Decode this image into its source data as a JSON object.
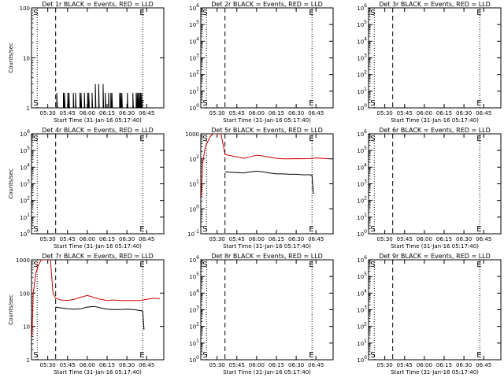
{
  "chart_data": [
    {
      "type": "line",
      "title": "Det 1r BLACK = Events, RED = LLD",
      "xlabel": "Start Time (31-Jan-16 05:17:40)",
      "ylabel": "Counts/sec",
      "xticks": [
        "05:30",
        "05:45",
        "06:00",
        "06:15",
        "06:30",
        "06:45"
      ],
      "yscale": "log",
      "ylim": [
        1,
        100
      ],
      "yticks": [
        {
          "value": 1,
          "label": "1"
        },
        {
          "value": 10,
          "label": "10"
        },
        {
          "value": 100,
          "label": "100"
        }
      ],
      "markers": {
        "S": "05:22",
        "E": "06:42"
      },
      "dotted_lines": [
        "05:22",
        "06:42"
      ],
      "dashed_line": "05:36",
      "series": [
        {
          "color": "#000000",
          "style": "spiky",
          "x": [
            "05:36",
            "06:42"
          ],
          "base": 1,
          "peak": 2,
          "peak2": 3
        }
      ]
    },
    {
      "type": "line",
      "title": "Det 2r BLACK = Events, RED = LLD",
      "xlabel": "Start Time (31-Jan-16 05:17:40)",
      "ylabel": "",
      "xticks": [
        "05:30",
        "05:45",
        "06:00",
        "06:15",
        "06:30",
        "06:45"
      ],
      "yscale": "log",
      "ylim": [
        1,
        1000000
      ],
      "yticks": [
        {
          "value": 1,
          "label": "10^0"
        },
        {
          "value": 10,
          "label": "10^1"
        },
        {
          "value": 100,
          "label": "10^2"
        },
        {
          "value": 1000,
          "label": "10^3"
        },
        {
          "value": 10000,
          "label": "10^4"
        },
        {
          "value": 100000,
          "label": "10^5"
        },
        {
          "value": 1000000,
          "label": "10^6"
        }
      ],
      "markers": {
        "S": "05:22",
        "E": "06:42"
      },
      "dotted_lines": [
        "05:22",
        "06:42"
      ],
      "dashed_line": "05:36",
      "series": []
    },
    {
      "type": "line",
      "title": "Det 3r BLACK = Events, RED = LLD",
      "xlabel": "Start Time (31-Jan-16 05:17:40)",
      "ylabel": "",
      "xticks": [
        "05:30",
        "05:45",
        "06:00",
        "06:15",
        "06:30",
        "06:45"
      ],
      "yscale": "log",
      "ylim": [
        1,
        1000000
      ],
      "yticks": [
        {
          "value": 1,
          "label": "10^0"
        },
        {
          "value": 10,
          "label": "10^1"
        },
        {
          "value": 100,
          "label": "10^2"
        },
        {
          "value": 1000,
          "label": "10^3"
        },
        {
          "value": 10000,
          "label": "10^4"
        },
        {
          "value": 100000,
          "label": "10^5"
        },
        {
          "value": 1000000,
          "label": "10^6"
        }
      ],
      "markers": {
        "S": "05:22",
        "E": "06:42"
      },
      "dotted_lines": [
        "05:22",
        "06:42"
      ],
      "dashed_line": "05:36",
      "series": []
    },
    {
      "type": "line",
      "title": "Det 4r BLACK = Events, RED = LLD",
      "xlabel": "Start Time (31-Jan-16 05:17:40)",
      "ylabel": "Counts/sec",
      "xticks": [
        "05:30",
        "05:45",
        "06:00",
        "06:15",
        "06:30",
        "06:45"
      ],
      "yscale": "log",
      "ylim": [
        1,
        1000000
      ],
      "yticks": [
        {
          "value": 1,
          "label": "10^0"
        },
        {
          "value": 10,
          "label": "10^1"
        },
        {
          "value": 100,
          "label": "10^2"
        },
        {
          "value": 1000,
          "label": "10^3"
        },
        {
          "value": 10000,
          "label": "10^4"
        },
        {
          "value": 100000,
          "label": "10^5"
        },
        {
          "value": 1000000,
          "label": "10^6"
        }
      ],
      "markers": {
        "S": "05:22",
        "E": "06:42"
      },
      "dotted_lines": [
        "05:22",
        "06:42"
      ],
      "dashed_line": "05:36",
      "series": []
    },
    {
      "type": "line",
      "title": "Det 5r BLACK = Events, RED = LLD",
      "xlabel": "Start Time (31-Jan-16 05:17:40)",
      "ylabel": "",
      "xticks": [
        "05:30",
        "05:45",
        "06:00",
        "06:15",
        "06:30",
        "06:45"
      ],
      "yscale": "log",
      "ylim": [
        0.1,
        1000
      ],
      "yticks": [
        {
          "value": 0.1,
          "label": "10^-1"
        },
        {
          "value": 1,
          "label": "10^0"
        },
        {
          "value": 10,
          "label": "10^1"
        },
        {
          "value": 100,
          "label": "10^2"
        },
        {
          "value": 1000,
          "label": "1000"
        }
      ],
      "markers": {
        "S": "05:22",
        "E": "06:42"
      },
      "dotted_lines": [
        "05:22",
        "06:42"
      ],
      "dashed_line": "05:36",
      "series": [
        {
          "color": "#cc0000",
          "x": [
            "05:18",
            "05:19",
            "05:21",
            "05:23",
            "05:25",
            "05:27",
            "05:30",
            "05:33",
            "05:36",
            "05:45",
            "05:50",
            "05:55",
            "06:00",
            "06:05",
            "06:10",
            "06:15",
            "06:20",
            "06:25",
            "06:30",
            "06:35",
            "06:40",
            "06:45",
            "06:50",
            "06:55"
          ],
          "y": [
            3,
            60,
            300,
            500,
            800,
            1000,
            1000,
            1000,
            150,
            120,
            105,
            120,
            140,
            130,
            115,
            105,
            100,
            100,
            102,
            101,
            102,
            108,
            105,
            100
          ]
        },
        {
          "color": "#000000",
          "x": [
            "05:36",
            "05:45",
            "05:50",
            "05:55",
            "06:00",
            "06:05",
            "06:10",
            "06:15",
            "06:20",
            "06:25",
            "06:30",
            "06:35",
            "06:40",
            "06:42",
            "06:43"
          ],
          "y": [
            30,
            28,
            27,
            30,
            32,
            30,
            27,
            25,
            25,
            24,
            24,
            23,
            23,
            22,
            4
          ]
        }
      ]
    },
    {
      "type": "line",
      "title": "Det 6r BLACK = Events, RED = LLD",
      "xlabel": "Start Time (31-Jan-16 05:17:40)",
      "ylabel": "",
      "xticks": [
        "05:30",
        "05:45",
        "06:00",
        "06:15",
        "06:30",
        "06:45"
      ],
      "yscale": "log",
      "ylim": [
        1,
        1000000
      ],
      "yticks": [
        {
          "value": 1,
          "label": "10^0"
        },
        {
          "value": 10,
          "label": "10^1"
        },
        {
          "value": 100,
          "label": "10^2"
        },
        {
          "value": 1000,
          "label": "10^3"
        },
        {
          "value": 10000,
          "label": "10^4"
        },
        {
          "value": 100000,
          "label": "10^5"
        },
        {
          "value": 1000000,
          "label": "10^6"
        }
      ],
      "markers": {
        "S": "05:22",
        "E": "06:42"
      },
      "dotted_lines": [
        "05:22",
        "06:42"
      ],
      "dashed_line": "05:36",
      "series": []
    },
    {
      "type": "line",
      "title": "Det 7r BLACK = Events, RED = LLD",
      "xlabel": "Start Time (31-Jan-16 05:17:40)",
      "ylabel": "Counts/sec",
      "xticks": [
        "05:30",
        "05:45",
        "06:00",
        "06:15",
        "06:30",
        "06:45"
      ],
      "yscale": "log",
      "ylim": [
        1,
        1000
      ],
      "yticks": [
        {
          "value": 1,
          "label": "1"
        },
        {
          "value": 10,
          "label": "10"
        },
        {
          "value": 100,
          "label": "100"
        },
        {
          "value": 1000,
          "label": "1000"
        }
      ],
      "markers": {
        "S": "05:22",
        "E": "06:42"
      },
      "dotted_lines": [
        "05:22",
        "06:42"
      ],
      "dashed_line": "05:36",
      "series": [
        {
          "color": "#cc0000",
          "x": [
            "05:18",
            "05:19",
            "05:21",
            "05:23",
            "05:25",
            "05:27",
            "05:30",
            "05:32",
            "05:34",
            "05:36",
            "05:40",
            "05:45",
            "05:50",
            "05:55",
            "06:00",
            "06:05",
            "06:10",
            "06:15",
            "06:20",
            "06:25",
            "06:30",
            "06:35",
            "06:40",
            "06:45",
            "06:50",
            "06:55"
          ],
          "y": [
            5,
            100,
            400,
            700,
            1000,
            1000,
            1000,
            1000,
            100,
            70,
            62,
            60,
            65,
            75,
            85,
            74,
            65,
            60,
            62,
            60,
            60,
            60,
            60,
            65,
            70,
            68
          ]
        },
        {
          "color": "#000000",
          "x": [
            "05:36",
            "05:40",
            "05:45",
            "05:50",
            "05:55",
            "06:00",
            "06:05",
            "06:10",
            "06:15",
            "06:20",
            "06:25",
            "06:30",
            "06:35",
            "06:40",
            "06:42",
            "06:43"
          ],
          "y": [
            38,
            36,
            34,
            33,
            34,
            38,
            40,
            36,
            33,
            32,
            32,
            33,
            32,
            30,
            29,
            8
          ]
        }
      ]
    },
    {
      "type": "line",
      "title": "Det 8r BLACK = Events, RED = LLD",
      "xlabel": "Start Time (31-Jan-16 05:17:40)",
      "ylabel": "",
      "xticks": [
        "05:30",
        "05:45",
        "06:00",
        "06:15",
        "06:30",
        "06:45"
      ],
      "yscale": "log",
      "ylim": [
        1,
        1000000
      ],
      "yticks": [
        {
          "value": 1,
          "label": "10^0"
        },
        {
          "value": 10,
          "label": "10^1"
        },
        {
          "value": 100,
          "label": "10^2"
        },
        {
          "value": 1000,
          "label": "10^3"
        },
        {
          "value": 10000,
          "label": "10^4"
        },
        {
          "value": 100000,
          "label": "10^5"
        },
        {
          "value": 1000000,
          "label": "10^6"
        }
      ],
      "markers": {
        "S": "05:22",
        "E": "06:42"
      },
      "dotted_lines": [
        "05:22",
        "06:42"
      ],
      "dashed_line": "05:36",
      "series": []
    },
    {
      "type": "line",
      "title": "Det 9r BLACK = Events, RED = LLD",
      "xlabel": "Start Time (31-Jan-16 05:17:40)",
      "ylabel": "",
      "xticks": [
        "05:30",
        "05:45",
        "06:00",
        "06:15",
        "06:30",
        "06:45"
      ],
      "yscale": "log",
      "ylim": [
        1,
        1000000
      ],
      "yticks": [
        {
          "value": 1,
          "label": "10^0"
        },
        {
          "value": 10,
          "label": "10^1"
        },
        {
          "value": 100,
          "label": "10^2"
        },
        {
          "value": 1000,
          "label": "10^3"
        },
        {
          "value": 10000,
          "label": "10^4"
        },
        {
          "value": 100000,
          "label": "10^5"
        },
        {
          "value": 1000000,
          "label": "10^6"
        }
      ],
      "markers": {
        "S": "05:22",
        "E": "06:42"
      },
      "dotted_lines": [
        "05:22",
        "06:42"
      ],
      "dashed_line": "05:36",
      "series": []
    }
  ]
}
